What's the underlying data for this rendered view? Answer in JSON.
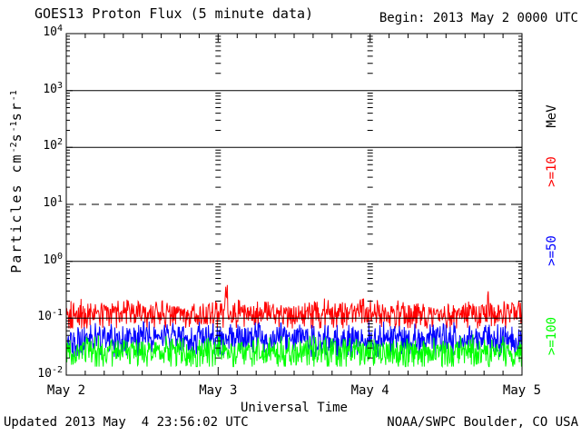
{
  "header": {
    "title": "GOES13 Proton Flux (5 minute data)",
    "begin": "Begin: 2013 May 2 0000 UTC"
  },
  "footer": {
    "updated": "Updated 2013 May  4 23:56:02 UTC",
    "source": "NOAA/SWPC Boulder, CO USA"
  },
  "axes": {
    "y": {
      "title_parts": [
        {
          "text": "Particles cm"
        },
        {
          "sup": "-2"
        },
        {
          "text": "s"
        },
        {
          "sup": "-1"
        },
        {
          "text": "sr"
        },
        {
          "sup": "-1"
        }
      ],
      "ticks": [
        {
          "base": "10",
          "exp": "4"
        },
        {
          "base": "10",
          "exp": "3"
        },
        {
          "base": "10",
          "exp": "2"
        },
        {
          "base": "10",
          "exp": "1"
        },
        {
          "base": "10",
          "exp": "0"
        },
        {
          "base": "10",
          "exp": "-1"
        },
        {
          "base": "10",
          "exp": "-2"
        }
      ]
    },
    "x": {
      "title": "Universal Time",
      "ticks": [
        "May 2",
        "May 3",
        "May 4",
        "May 5"
      ]
    }
  },
  "legend": {
    "unit": "MeV",
    "entries": [
      {
        "label": ">=10",
        "color": "#ff0000"
      },
      {
        "label": ">=50",
        "color": "#0000ff"
      },
      {
        "label": ">=100",
        "color": "#00ff00"
      }
    ]
  },
  "colors": {
    "frame": "#000000",
    "background": "#ffffff",
    "text": "#000000"
  },
  "chart_data": {
    "type": "line",
    "title": "GOES13 Proton Flux (5 minute data)",
    "subtitle": "Begin: 2013 May 2 0000 UTC",
    "xlabel": "Universal Time",
    "ylabel": "Particles cm⁻²s⁻¹sr⁻¹",
    "y_scale": "log",
    "ylim": [
      0.01,
      10000
    ],
    "y_ticks": [
      10000,
      1000,
      100,
      10,
      1,
      0.1,
      0.01
    ],
    "x_ticks": [
      "May 2",
      "May 3",
      "May 4",
      "May 5"
    ],
    "x_minor_tick_hours": 3,
    "gridlines": {
      "solid": [
        1000,
        100,
        1,
        0.1
      ],
      "dashed": [
        10
      ]
    },
    "day_boundary_minor_tick_columns": [
      "May 3",
      "May 4"
    ],
    "cadence_minutes": 5,
    "points_per_series": 864,
    "legend_position": "right-rotated",
    "series": [
      {
        "name": ">=10 MeV",
        "color": "#ff0000",
        "baseline_log10": -0.9,
        "noise_amp_log10": 0.13,
        "clamp_log10": [
          -1.18,
          -0.6
        ],
        "typical_range": [
          0.07,
          0.25
        ],
        "max_value": 0.52,
        "spike_probability": 0.004,
        "spike_boost_log10": [
          0.15,
          0.45
        ]
      },
      {
        "name": ">=50 MeV",
        "color": "#0000ff",
        "baseline_log10": -1.35,
        "noise_amp_log10": 0.16,
        "clamp_log10": [
          -1.68,
          -1.0
        ],
        "typical_range": [
          0.021,
          0.1
        ],
        "max_value": 0.1,
        "spike_probability": 0,
        "spike_boost_log10": [
          0,
          0
        ]
      },
      {
        "name": ">=100 MeV",
        "color": "#00ff00",
        "baseline_log10": -1.58,
        "noise_amp_log10": 0.15,
        "clamp_log10": [
          -1.85,
          -1.26
        ],
        "typical_range": [
          0.014,
          0.055
        ],
        "max_value": 0.055,
        "spike_probability": 0,
        "spike_boost_log10": [
          0,
          0
        ]
      }
    ],
    "seed": 20130502
  }
}
